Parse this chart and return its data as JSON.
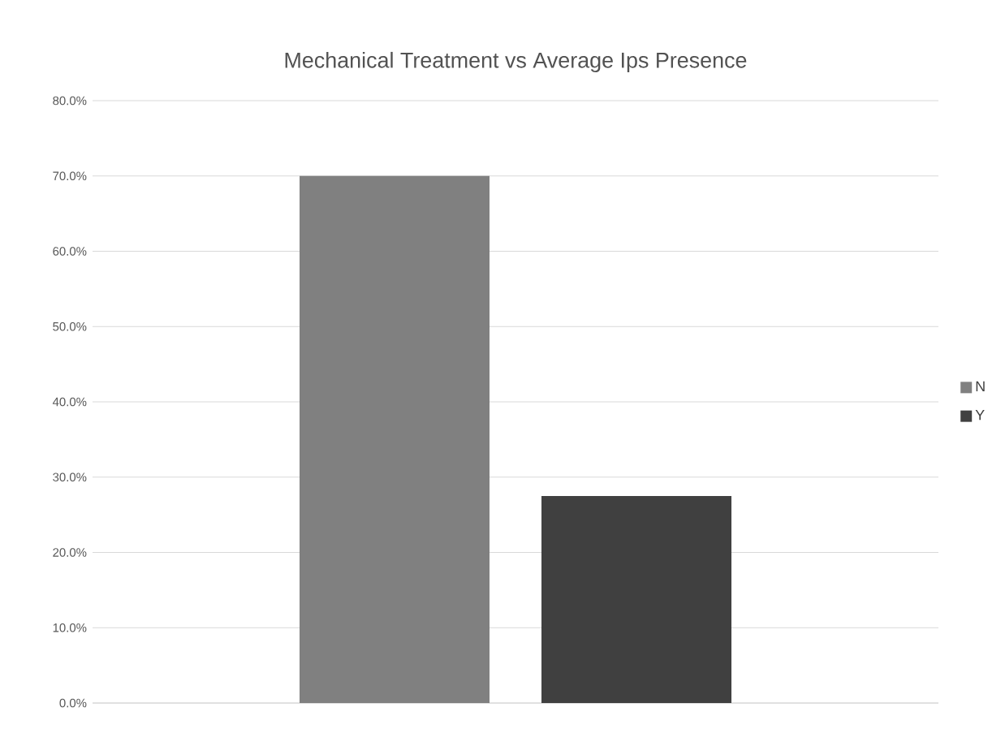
{
  "chart_data": {
    "type": "bar",
    "title": "Mechanical Treatment vs Average Ips Presence",
    "categories": [
      null
    ],
    "series": [
      {
        "name": "N",
        "color": "#808080",
        "values": [
          70.0
        ]
      },
      {
        "name": "Y",
        "color": "#404040",
        "values": [
          27.5
        ]
      }
    ],
    "ylim": [
      0,
      80
    ],
    "yticks": [
      {
        "value": 0,
        "label": "0.0%"
      },
      {
        "value": 10,
        "label": "10.0%"
      },
      {
        "value": 20,
        "label": "20.0%"
      },
      {
        "value": 30,
        "label": "30.0%"
      },
      {
        "value": 40,
        "label": "40.0%"
      },
      {
        "value": 50,
        "label": "50.0%"
      },
      {
        "value": 60,
        "label": "60.0%"
      },
      {
        "value": 70,
        "label": "70.0%"
      },
      {
        "value": 80,
        "label": "80.0%"
      }
    ],
    "grid": "y",
    "legend": "right"
  }
}
